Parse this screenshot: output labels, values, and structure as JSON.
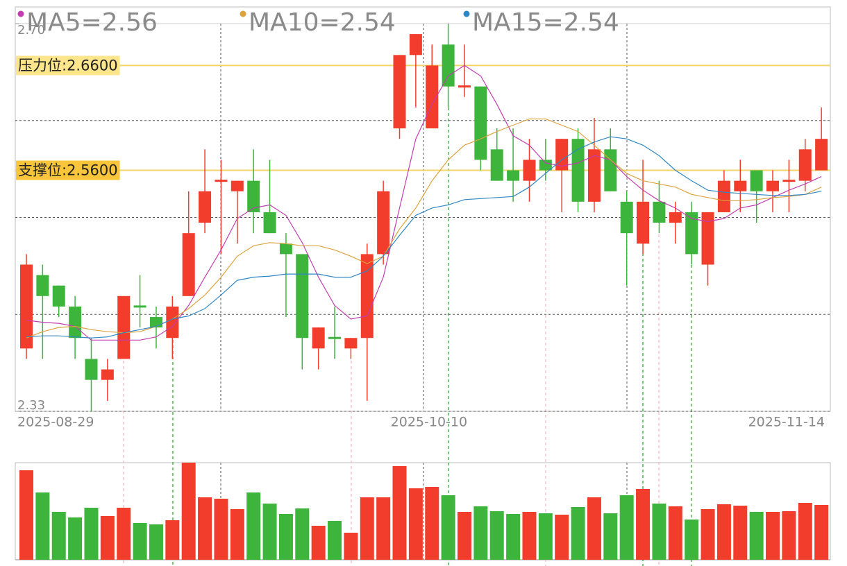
{
  "chart_data": {
    "type": "candlestick",
    "categories": [
      "2025-08-29",
      null,
      null,
      null,
      null,
      null,
      null,
      null,
      null,
      null,
      null,
      null,
      null,
      null,
      null,
      null,
      null,
      null,
      null,
      null,
      null,
      null,
      null,
      null,
      "2025-10-10",
      null,
      null,
      null,
      null,
      null,
      null,
      null,
      null,
      null,
      null,
      null,
      null,
      null,
      null,
      null,
      null,
      null,
      null,
      null,
      null,
      null,
      null,
      null,
      null,
      "2025-11-14"
    ],
    "open": [
      2.39,
      2.46,
      2.45,
      2.43,
      2.38,
      2.36,
      2.38,
      2.431,
      2.42,
      2.4,
      2.44,
      2.51,
      2.549,
      2.54,
      2.55,
      2.52,
      2.49,
      2.48,
      2.39,
      2.401,
      2.39,
      2.4,
      2.48,
      2.6,
      2.67,
      2.6,
      2.68,
      2.639,
      2.64,
      2.58,
      2.56,
      2.55,
      2.57,
      2.56,
      2.59,
      2.53,
      2.58,
      2.53,
      2.49,
      2.53,
      2.51,
      2.52,
      2.47,
      2.52,
      2.54,
      2.56,
      2.54,
      2.549,
      2.55,
      2.56
    ],
    "high": [
      2.48,
      2.47,
      2.45,
      2.44,
      2.4,
      2.38,
      2.44,
      2.46,
      2.43,
      2.44,
      2.54,
      2.58,
      2.57,
      2.55,
      2.58,
      2.57,
      2.5,
      2.48,
      2.41,
      2.43,
      2.4,
      2.49,
      2.55,
      2.67,
      2.69,
      2.68,
      2.7,
      2.68,
      2.64,
      2.6,
      2.6,
      2.59,
      2.59,
      2.59,
      2.6,
      2.61,
      2.6,
      2.54,
      2.57,
      2.55,
      2.53,
      2.53,
      2.52,
      2.56,
      2.57,
      2.56,
      2.56,
      2.57,
      2.59,
      2.62
    ],
    "low": [
      2.38,
      2.38,
      2.42,
      2.38,
      2.33,
      2.34,
      2.38,
      2.41,
      2.39,
      2.38,
      2.44,
      2.5,
      2.48,
      2.49,
      2.5,
      2.5,
      2.42,
      2.37,
      2.37,
      2.38,
      2.38,
      2.34,
      2.47,
      2.59,
      2.62,
      2.6,
      2.62,
      2.63,
      2.56,
      2.55,
      2.53,
      2.53,
      2.55,
      2.52,
      2.52,
      2.52,
      2.54,
      2.45,
      2.48,
      2.5,
      2.49,
      2.47,
      2.45,
      2.52,
      2.52,
      2.51,
      2.52,
      2.52,
      2.54,
      2.56
    ],
    "close": [
      2.47,
      2.44,
      2.43,
      2.4,
      2.36,
      2.37,
      2.44,
      2.429,
      2.41,
      2.43,
      2.5,
      2.54,
      2.551,
      2.55,
      2.52,
      2.5,
      2.48,
      2.4,
      2.41,
      2.399,
      2.4,
      2.48,
      2.54,
      2.67,
      2.69,
      2.66,
      2.64,
      2.641,
      2.57,
      2.55,
      2.55,
      2.57,
      2.56,
      2.59,
      2.53,
      2.58,
      2.54,
      2.5,
      2.53,
      2.51,
      2.52,
      2.48,
      2.52,
      2.55,
      2.55,
      2.54,
      2.55,
      2.551,
      2.58,
      2.59
    ],
    "up_color": "#f23c2c",
    "down_color": "#3db53d",
    "ylim": [
      2.33,
      2.7
    ],
    "yticks": [
      {
        "value": 2.7,
        "label": "2.70"
      },
      {
        "value": 2.33,
        "label": "2.33"
      }
    ],
    "series": [
      {
        "name": "MA5=2.56",
        "color": "#c23db0",
        "values": [
          2.417,
          2.415,
          2.414,
          2.411,
          2.398,
          2.398,
          2.398,
          2.398,
          2.401,
          2.411,
          2.431,
          2.458,
          2.484,
          2.514,
          2.524,
          2.527,
          2.517,
          2.491,
          2.458,
          2.431,
          2.418,
          2.421,
          2.458,
          2.524,
          2.59,
          2.623,
          2.65,
          2.66,
          2.65,
          2.623,
          2.593,
          2.584,
          2.567,
          2.564,
          2.567,
          2.574,
          2.57,
          2.554,
          2.541,
          2.531,
          2.524,
          2.514,
          2.511,
          2.514,
          2.524,
          2.527,
          2.534,
          2.541,
          2.547,
          2.554
        ]
      },
      {
        "name": "MA10=2.54",
        "color": "#dca23c",
        "values": [
          2.4,
          2.406,
          2.41,
          2.411,
          2.408,
          2.406,
          2.405,
          2.406,
          2.411,
          2.418,
          2.428,
          2.441,
          2.458,
          2.478,
          2.488,
          2.491,
          2.49,
          2.488,
          2.488,
          2.484,
          2.478,
          2.471,
          2.478,
          2.504,
          2.524,
          2.55,
          2.57,
          2.584,
          2.59,
          2.597,
          2.603,
          2.609,
          2.609,
          2.603,
          2.597,
          2.584,
          2.57,
          2.557,
          2.55,
          2.547,
          2.544,
          2.537,
          2.534,
          2.531,
          2.531,
          2.532,
          2.534,
          2.535,
          2.537,
          2.544
        ]
      },
      {
        "name": "MA15=2.54",
        "color": "#2f86c4",
        "values": [
          2.401,
          2.402,
          2.402,
          2.401,
          2.4,
          2.401,
          2.405,
          2.408,
          2.411,
          2.418,
          2.421,
          2.428,
          2.441,
          2.455,
          2.458,
          2.459,
          2.461,
          2.461,
          2.461,
          2.458,
          2.458,
          2.464,
          2.478,
          2.498,
          2.517,
          2.524,
          2.527,
          2.532,
          2.533,
          2.534,
          2.535,
          2.544,
          2.557,
          2.57,
          2.58,
          2.587,
          2.592,
          2.59,
          2.584,
          2.574,
          2.56,
          2.55,
          2.541,
          2.539,
          2.538,
          2.537,
          2.536,
          2.536,
          2.537,
          2.54
        ]
      }
    ],
    "levels": [
      {
        "label": "压力位:2.6600",
        "value": 2.66,
        "color": "#f2d46a",
        "label_color": "#fde58c"
      },
      {
        "label": "支撑位:2.5600",
        "value": 2.56,
        "color": "#f2d46a",
        "label_color": "#f9c53a"
      }
    ],
    "volume": {
      "values": [
        129,
        97,
        69,
        61,
        75,
        63,
        75,
        53,
        51,
        57,
        140,
        90,
        88,
        73,
        97,
        81,
        66,
        74,
        49,
        56,
        39,
        90,
        90,
        135,
        103,
        105,
        93,
        69,
        77,
        70,
        66,
        69,
        67,
        65,
        76,
        90,
        67,
        93,
        102,
        81,
        77,
        58,
        73,
        80,
        78,
        69,
        69,
        70,
        82,
        79
      ],
      "ylim": [
        0,
        140
      ]
    }
  }
}
